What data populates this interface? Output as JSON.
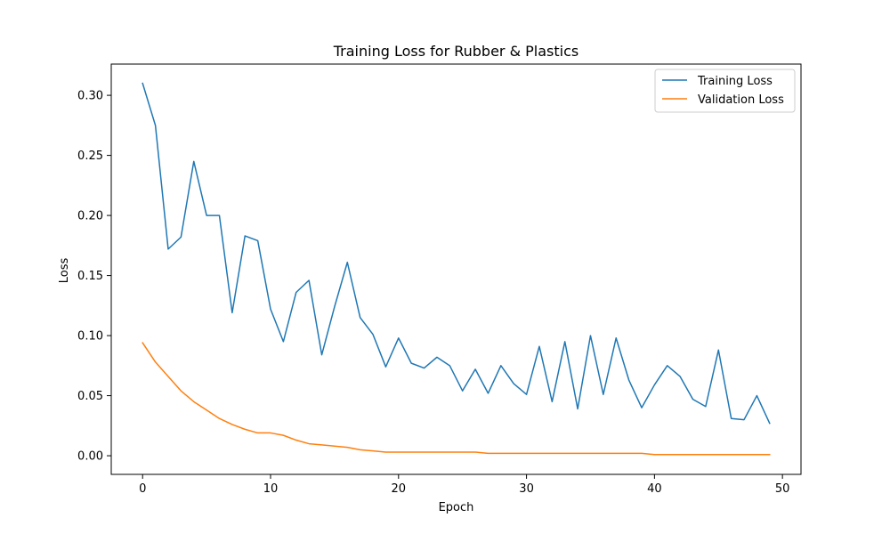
{
  "chart_data": {
    "type": "line",
    "title": "Training Loss for Rubber & Plastics",
    "xlabel": "Epoch",
    "ylabel": "Loss",
    "xlim": [
      -2.45,
      51.45
    ],
    "ylim": [
      -0.0155,
      0.326
    ],
    "xticks": [
      0,
      10,
      20,
      30,
      40,
      50
    ],
    "yticks": [
      0.0,
      0.05,
      0.1,
      0.15,
      0.2,
      0.25,
      0.3
    ],
    "grid": false,
    "legend_position": "top-right",
    "x": [
      0,
      1,
      2,
      3,
      4,
      5,
      6,
      7,
      8,
      9,
      10,
      11,
      12,
      13,
      14,
      15,
      16,
      17,
      18,
      19,
      20,
      21,
      22,
      23,
      24,
      25,
      26,
      27,
      28,
      29,
      30,
      31,
      32,
      33,
      34,
      35,
      36,
      37,
      38,
      39,
      40,
      41,
      42,
      43,
      44,
      45,
      46,
      47,
      48,
      49
    ],
    "series": [
      {
        "name": "Training Loss",
        "color": "#1f77b4",
        "values": [
          0.31,
          0.275,
          0.172,
          0.182,
          0.245,
          0.2,
          0.2,
          0.119,
          0.183,
          0.179,
          0.122,
          0.095,
          0.136,
          0.146,
          0.084,
          0.124,
          0.161,
          0.115,
          0.101,
          0.074,
          0.098,
          0.077,
          0.073,
          0.082,
          0.075,
          0.054,
          0.072,
          0.052,
          0.075,
          0.06,
          0.051,
          0.091,
          0.045,
          0.095,
          0.039,
          0.1,
          0.051,
          0.098,
          0.063,
          0.04,
          0.059,
          0.075,
          0.066,
          0.047,
          0.041,
          0.088,
          0.031,
          0.03,
          0.05,
          0.027
        ]
      },
      {
        "name": "Validation Loss",
        "color": "#ff7f0e",
        "values": [
          0.094,
          0.078,
          0.066,
          0.054,
          0.045,
          0.038,
          0.031,
          0.026,
          0.022,
          0.019,
          0.019,
          0.017,
          0.013,
          0.01,
          0.009,
          0.008,
          0.007,
          0.005,
          0.004,
          0.003,
          0.003,
          0.003,
          0.003,
          0.003,
          0.003,
          0.003,
          0.003,
          0.002,
          0.002,
          0.002,
          0.002,
          0.002,
          0.002,
          0.002,
          0.002,
          0.002,
          0.002,
          0.002,
          0.002,
          0.002,
          0.001,
          0.001,
          0.001,
          0.001,
          0.001,
          0.001,
          0.001,
          0.001,
          0.001,
          0.001
        ]
      }
    ]
  }
}
